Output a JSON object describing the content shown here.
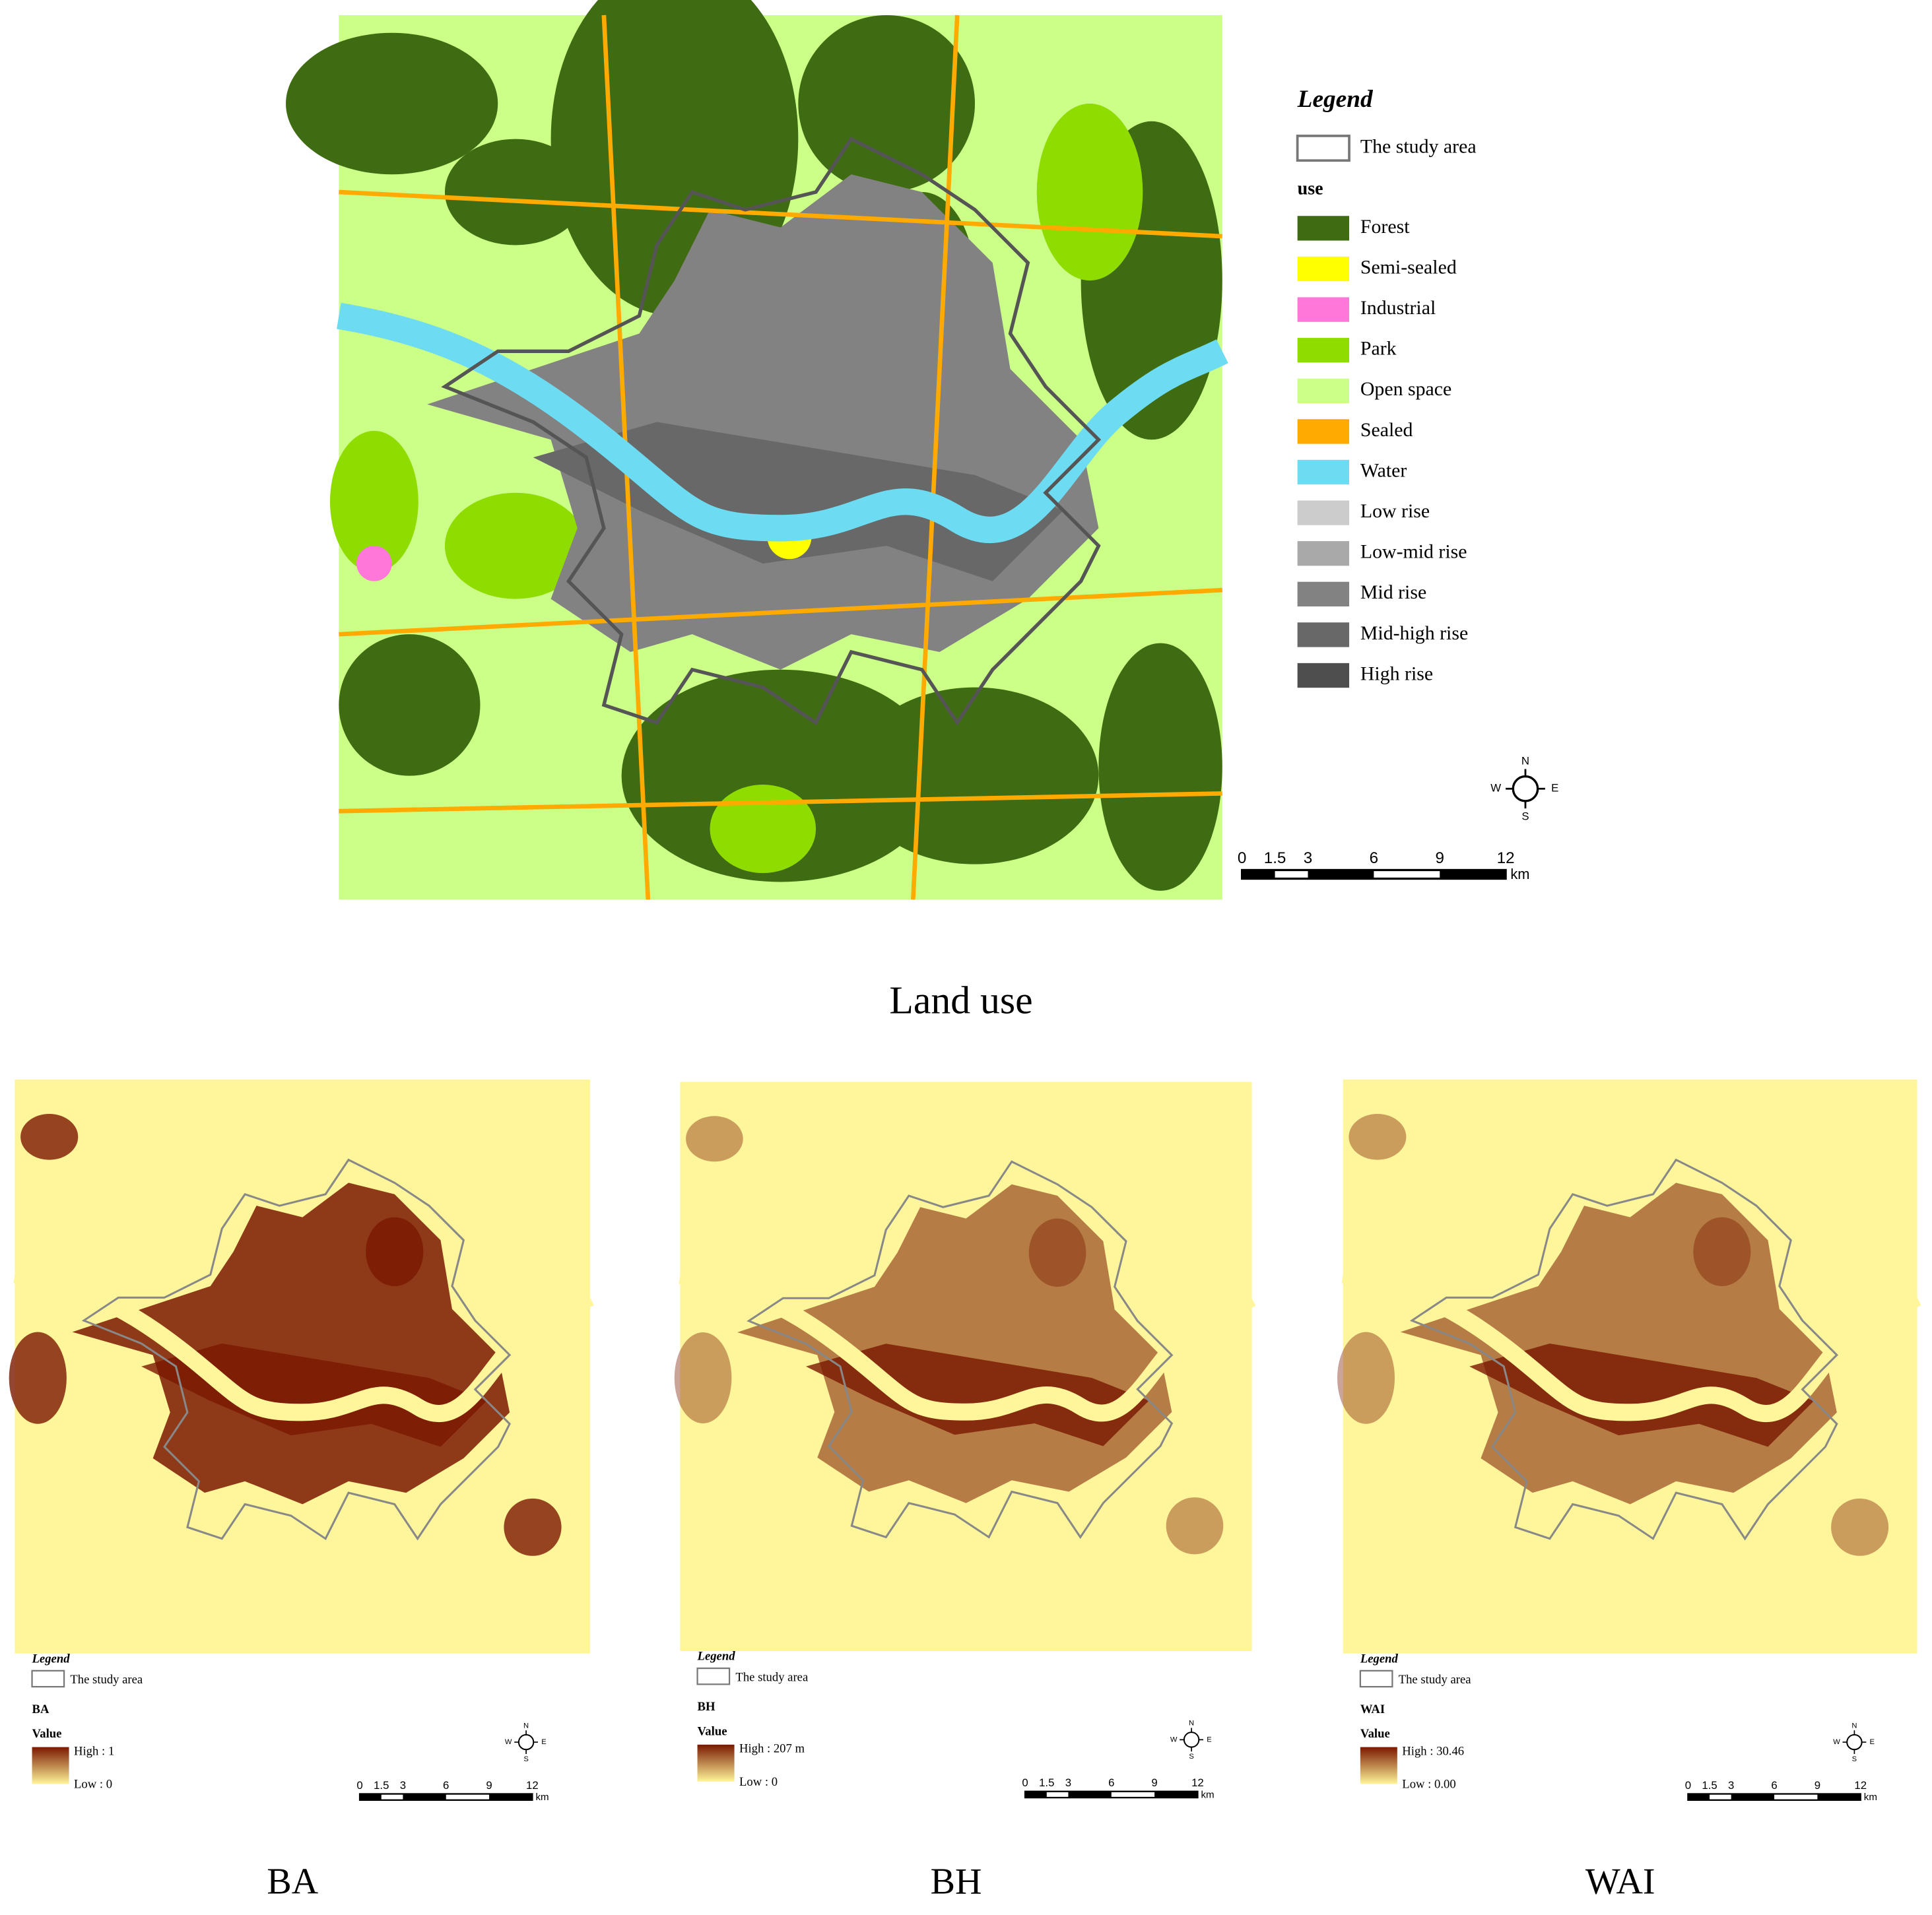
{
  "main_map": {
    "legend": {
      "title": "Legend",
      "study_area": "The study area",
      "field": "use",
      "classes": [
        {
          "label": "Forest",
          "color": "#3f6b12"
        },
        {
          "label": "Semi-sealed",
          "color": "#ffff00"
        },
        {
          "label": "Industrial",
          "color": "#ff77d9"
        },
        {
          "label": "Park",
          "color": "#8fdc00"
        },
        {
          "label": "Open space",
          "color": "#ccff88"
        },
        {
          "label": "Sealed",
          "color": "#ffaa00"
        },
        {
          "label": "Water",
          "color": "#6ddcf2"
        },
        {
          "label": "Low rise",
          "color": "#cccccc"
        },
        {
          "label": "Low-mid rise",
          "color": "#a9a9a9"
        },
        {
          "label": "Mid rise",
          "color": "#828282"
        },
        {
          "label": "Mid-high rise",
          "color": "#686868"
        },
        {
          "label": "High rise",
          "color": "#4e4e4e"
        }
      ]
    },
    "scale_bar": {
      "labels": [
        "0",
        "1.5",
        "3",
        "6",
        "9",
        "12"
      ],
      "unit": "km"
    },
    "compass": {
      "n": "N",
      "e": "E",
      "s": "S",
      "w": "W"
    },
    "caption": "Land use"
  },
  "small_maps": [
    {
      "legend_title": "Legend",
      "study_area": "The study area",
      "layer": "BA",
      "value_title": "Value",
      "high": "High : 1",
      "low": "Low : 0",
      "ramp": [
        "#7a1800",
        "#fff59a"
      ],
      "scale_bar": {
        "labels": [
          "0",
          "1.5",
          "3",
          "6",
          "9",
          "12"
        ],
        "unit": "km"
      },
      "compass": {
        "n": "N",
        "e": "E",
        "s": "S",
        "w": "W"
      },
      "caption": "BA"
    },
    {
      "legend_title": "Legend",
      "study_area": "The study area",
      "layer": "BH",
      "value_title": "Value",
      "high": "High : 207 m",
      "low": "Low : 0",
      "ramp": [
        "#7a1800",
        "#fff59a"
      ],
      "scale_bar": {
        "labels": [
          "0",
          "1.5",
          "3",
          "6",
          "9",
          "12"
        ],
        "unit": "km"
      },
      "compass": {
        "n": "N",
        "e": "E",
        "s": "S",
        "w": "W"
      },
      "caption": "BH"
    },
    {
      "legend_title": "Legend",
      "study_area": "The study area",
      "layer": "WAI",
      "value_title": "Value",
      "high": "High : 30.46",
      "low": "Low : 0.00",
      "ramp": [
        "#7a1800",
        "#fff59a"
      ],
      "scale_bar": {
        "labels": [
          "0",
          "1.5",
          "3",
          "6",
          "9",
          "12"
        ],
        "unit": "km"
      },
      "compass": {
        "n": "N",
        "e": "E",
        "s": "S",
        "w": "W"
      },
      "caption": "WAI"
    }
  ]
}
